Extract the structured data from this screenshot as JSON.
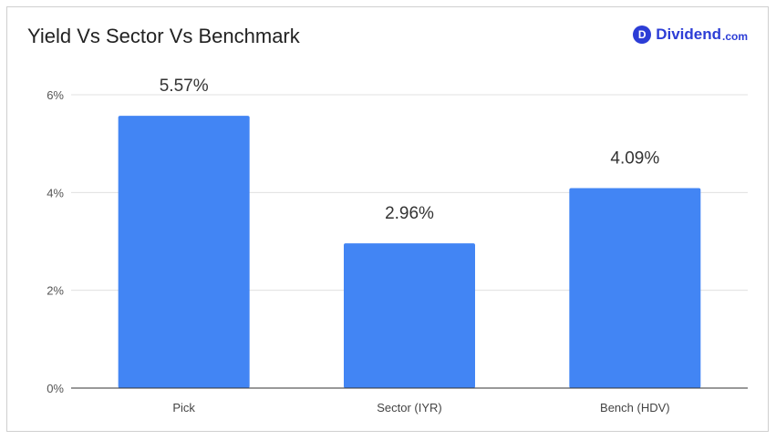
{
  "header": {
    "title": "Yield Vs Sector Vs Benchmark",
    "brand_badge": "D",
    "brand_name": "Dividend",
    "brand_tld": ".com"
  },
  "colors": {
    "bar": "#4285f4",
    "grid": "#e0e0e0",
    "axis": "#333333",
    "brand": "#2c3dd6"
  },
  "chart_data": {
    "type": "bar",
    "title": "Yield Vs Sector Vs Benchmark",
    "categories": [
      "Pick",
      "Sector (IYR)",
      "Bench (HDV)"
    ],
    "values": [
      5.57,
      2.96,
      4.09
    ],
    "data_labels": [
      "5.57%",
      "2.96%",
      "4.09%"
    ],
    "ylim": [
      0,
      6
    ],
    "yticks": [
      0,
      2,
      4,
      6
    ],
    "ytick_labels": [
      "0%",
      "2%",
      "4%",
      "6%"
    ],
    "xlabel": "",
    "ylabel": "",
    "grid": true
  }
}
